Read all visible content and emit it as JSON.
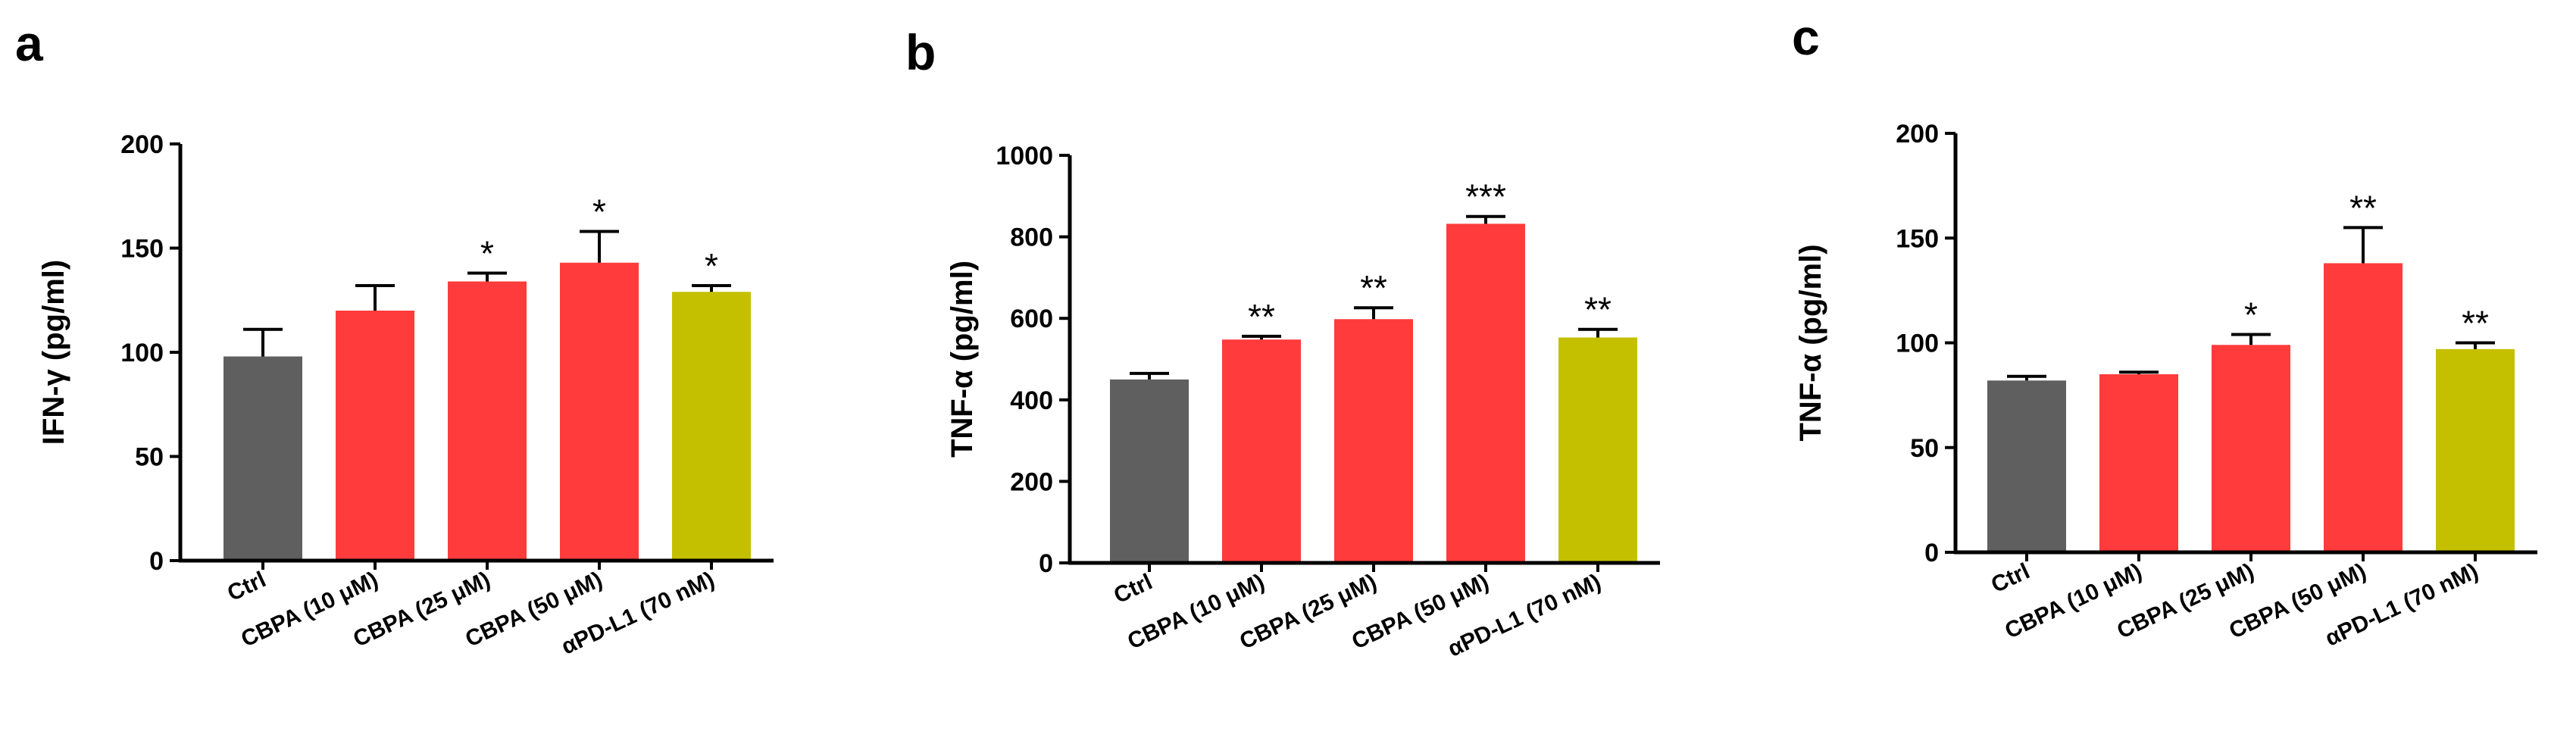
{
  "colors": {
    "ctrl": "#5f5f5f",
    "cbpa": "#ff3b3b",
    "apdl1": "#c4c000",
    "axis": "#000000"
  },
  "chart_data": [
    {
      "panel": "a",
      "type": "bar",
      "ylabel": "IFN-γ (pg/ml)",
      "ylim": [
        0,
        200
      ],
      "yticks": [
        0,
        50,
        100,
        150,
        200
      ],
      "categories": [
        "Ctrl",
        "CBPA (10 μM)",
        "CBPA (25 μM)",
        "CBPA (50 μM)",
        "αPD-L1 (70 nM)"
      ],
      "values": [
        98,
        120,
        134,
        143,
        129
      ],
      "errors": [
        13,
        12,
        4,
        15,
        3
      ],
      "significance": [
        "",
        "",
        "*",
        "*",
        "*"
      ],
      "bar_colors": [
        "ctrl",
        "cbpa",
        "cbpa",
        "cbpa",
        "apdl1"
      ]
    },
    {
      "panel": "b",
      "type": "bar",
      "ylabel": "TNF-α (pg/ml)",
      "ylim": [
        0,
        1000
      ],
      "yticks": [
        0,
        200,
        400,
        600,
        800,
        1000
      ],
      "categories": [
        "Ctrl",
        "CBPA (10 μM)",
        "CBPA (25 μM)",
        "CBPA (50 μM)",
        "αPD-L1 (70 nM)"
      ],
      "values": [
        450,
        548,
        598,
        832,
        553
      ],
      "errors": [
        15,
        8,
        28,
        18,
        20
      ],
      "significance": [
        "",
        "**",
        "**",
        "***",
        "**"
      ],
      "bar_colors": [
        "ctrl",
        "cbpa",
        "cbpa",
        "cbpa",
        "apdl1"
      ]
    },
    {
      "panel": "c",
      "type": "bar",
      "ylabel": "TNF-α (pg/ml)",
      "ylim": [
        0,
        200
      ],
      "yticks": [
        0,
        50,
        100,
        150,
        200
      ],
      "categories": [
        "Ctrl",
        "CBPA (10 μM)",
        "CBPA (25 μM)",
        "CBPA (50 μM)",
        "αPD-L1 (70 nM)"
      ],
      "values": [
        82,
        85,
        99,
        138,
        97
      ],
      "errors": [
        2,
        1,
        5,
        17,
        3
      ],
      "significance": [
        "",
        "",
        "*",
        "**",
        "**"
      ],
      "bar_colors": [
        "ctrl",
        "cbpa",
        "cbpa",
        "cbpa",
        "apdl1"
      ]
    }
  ]
}
